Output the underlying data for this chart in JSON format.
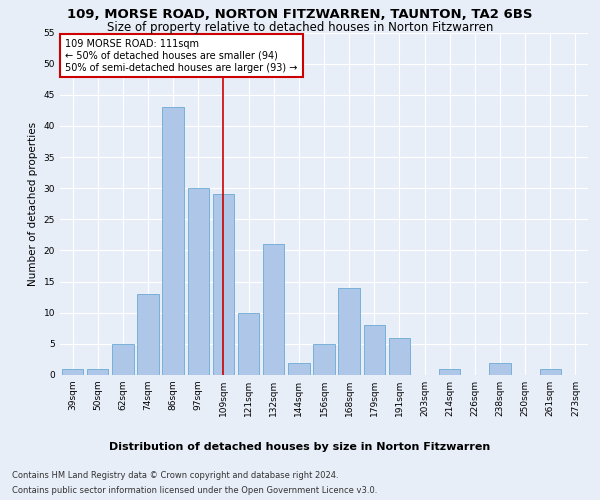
{
  "title": "109, MORSE ROAD, NORTON FITZWARREN, TAUNTON, TA2 6BS",
  "subtitle": "Size of property relative to detached houses in Norton Fitzwarren",
  "xlabel": "Distribution of detached houses by size in Norton Fitzwarren",
  "ylabel": "Number of detached properties",
  "footer_line1": "Contains HM Land Registry data © Crown copyright and database right 2024.",
  "footer_line2": "Contains public sector information licensed under the Open Government Licence v3.0.",
  "categories": [
    "39sqm",
    "50sqm",
    "62sqm",
    "74sqm",
    "86sqm",
    "97sqm",
    "109sqm",
    "121sqm",
    "132sqm",
    "144sqm",
    "156sqm",
    "168sqm",
    "179sqm",
    "191sqm",
    "203sqm",
    "214sqm",
    "226sqm",
    "238sqm",
    "250sqm",
    "261sqm",
    "273sqm"
  ],
  "values": [
    1,
    1,
    5,
    13,
    43,
    30,
    29,
    10,
    21,
    2,
    5,
    14,
    8,
    6,
    0,
    1,
    0,
    2,
    0,
    1,
    0
  ],
  "bar_color": "#aec6e8",
  "bar_edge_color": "#6aaad4",
  "highlight_index": 6,
  "highlight_line_color": "#cc0000",
  "annotation_text": "109 MORSE ROAD: 111sqm\n← 50% of detached houses are smaller (94)\n50% of semi-detached houses are larger (93) →",
  "annotation_box_color": "#ffffff",
  "annotation_box_edge": "#cc0000",
  "ylim": [
    0,
    55
  ],
  "yticks": [
    0,
    5,
    10,
    15,
    20,
    25,
    30,
    35,
    40,
    45,
    50,
    55
  ],
  "background_color": "#e8eef8",
  "plot_background": "#e8eef8",
  "grid_color": "#ffffff",
  "title_fontsize": 9.5,
  "subtitle_fontsize": 8.5,
  "xlabel_fontsize": 8,
  "ylabel_fontsize": 7.5,
  "tick_fontsize": 6.5,
  "annotation_fontsize": 7,
  "footer_fontsize": 6
}
